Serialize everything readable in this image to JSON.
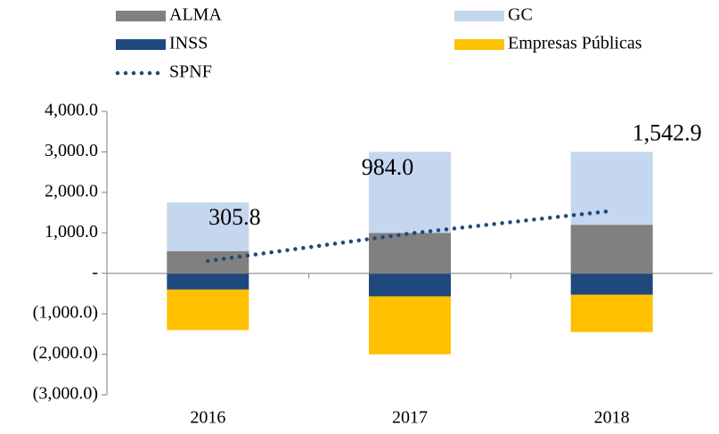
{
  "chart_data": {
    "type": "bar",
    "categories": [
      "2016",
      "2017",
      "2018"
    ],
    "series": [
      {
        "name": "ALMA",
        "color": "#808080",
        "values": [
          550,
          1000,
          1200
        ]
      },
      {
        "name": "GC",
        "color": "#c5d6ef",
        "values": [
          1200,
          2000,
          1800
        ]
      },
      {
        "name": "INSS",
        "color": "#1f497d",
        "values": [
          -400,
          -570,
          -530
        ]
      },
      {
        "name": "Empresas Públicas",
        "color": "#ffc000",
        "values": [
          -1000,
          -1430,
          -920
        ]
      },
      {
        "name": "SPNF",
        "type": "line",
        "color": "#1f497d",
        "values": [
          305.8,
          984.0,
          1542.9
        ],
        "value_labels": [
          "305.8",
          "984.0",
          "1,542.9"
        ]
      }
    ],
    "ylim": [
      -3000,
      4000
    ],
    "yticks": [
      {
        "value": 4000,
        "label": "4,000.0"
      },
      {
        "value": 3000,
        "label": "3,000.0"
      },
      {
        "value": 2000,
        "label": "2,000.0"
      },
      {
        "value": 1000,
        "label": "1,000.0"
      },
      {
        "value": 0,
        "label": "-"
      },
      {
        "value": -1000,
        "label": "(1,000.0)"
      },
      {
        "value": -2000,
        "label": "(2,000.0)"
      },
      {
        "value": -3000,
        "label": "(3,000.0)"
      }
    ],
    "stacked": true
  }
}
